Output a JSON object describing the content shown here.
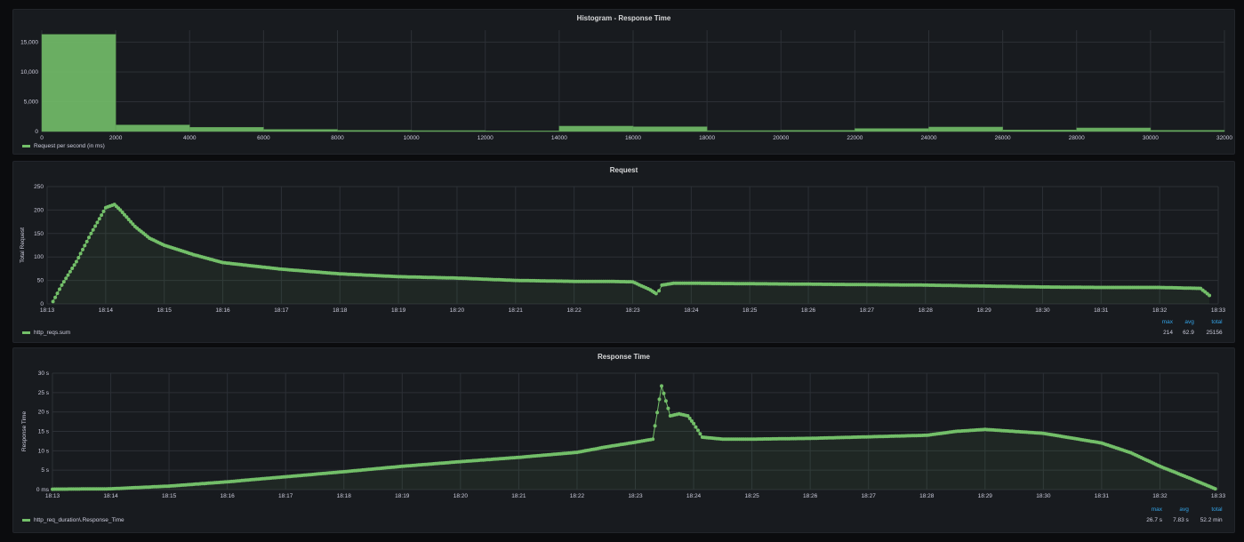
{
  "chart_data": [
    {
      "type": "bar",
      "title": "Histogram - Response Time",
      "xlabel": "",
      "ylabel": "",
      "xlim": [
        0,
        32000
      ],
      "ylim": [
        0,
        17000
      ],
      "x_ticks": [
        "0",
        "2000",
        "4000",
        "6000",
        "8000",
        "10000",
        "12000",
        "14000",
        "16000",
        "18000",
        "20000",
        "22000",
        "24000",
        "26000",
        "28000",
        "30000",
        "32000"
      ],
      "y_ticks": [
        "0",
        "5,000",
        "10,000",
        "15,000"
      ],
      "y_tick_values": [
        0,
        5000,
        10000,
        15000
      ],
      "bin_edges": [
        0,
        2000,
        4000,
        6000,
        8000,
        10000,
        12000,
        14000,
        16000,
        18000,
        20000,
        22000,
        24000,
        26000,
        28000,
        30000,
        32000
      ],
      "values": [
        16300,
        1100,
        700,
        350,
        200,
        150,
        100,
        900,
        800,
        150,
        200,
        500,
        750,
        250,
        600,
        200
      ],
      "color": "#73bf69",
      "legend": [
        "Request per second (in ms)"
      ],
      "legend_position": "bottom-left",
      "grid": true
    },
    {
      "type": "line",
      "title": "Request",
      "xlabel": "",
      "ylabel": "Total Request",
      "ylim": [
        0,
        250
      ],
      "x_ticks": [
        "18:13",
        "18:14",
        "18:15",
        "18:16",
        "18:17",
        "18:18",
        "18:19",
        "18:20",
        "18:21",
        "18:22",
        "18:23",
        "18:24",
        "18:25",
        "18:26",
        "18:27",
        "18:28",
        "18:29",
        "18:30",
        "18:31",
        "18:32",
        "18:33"
      ],
      "y_ticks": [
        "0",
        "50",
        "100",
        "150",
        "200",
        "250"
      ],
      "y_tick_values": [
        0,
        50,
        100,
        150,
        200,
        250
      ],
      "x": [
        0.1,
        0.25,
        0.5,
        0.75,
        1.0,
        1.15,
        1.25,
        1.5,
        1.75,
        2.0,
        2.5,
        3.0,
        4.0,
        5.0,
        6.0,
        7.0,
        8.0,
        9.0,
        9.5,
        10.0,
        10.3,
        10.4,
        10.45,
        10.5,
        10.7,
        11.0,
        12.0,
        13.0,
        14.0,
        15.0,
        16.0,
        17.0,
        18.0,
        19.0,
        19.7,
        19.85
      ],
      "series": [
        {
          "name": "http_reqs.sum",
          "values": [
            5,
            40,
            90,
            150,
            205,
            212,
            200,
            165,
            140,
            125,
            105,
            88,
            74,
            64,
            58,
            55,
            50,
            48,
            48,
            47,
            30,
            22,
            28,
            40,
            44,
            44,
            43,
            42,
            41,
            40,
            38,
            36,
            35,
            35,
            33,
            18
          ]
        }
      ],
      "color": "#73bf69",
      "legend": [
        "http_reqs.sum"
      ],
      "legend_position": "bottom-left",
      "stats": {
        "headers": [
          "max",
          "avg",
          "total"
        ],
        "values": [
          "214",
          "62.9",
          "25156"
        ]
      },
      "grid": true
    },
    {
      "type": "line",
      "title": "Response Time",
      "xlabel": "",
      "ylabel": "Response Time",
      "ylim": [
        0,
        30
      ],
      "x_ticks": [
        "18:13",
        "18:14",
        "18:15",
        "18:16",
        "18:17",
        "18:18",
        "18:19",
        "18:20",
        "18:21",
        "18:22",
        "18:23",
        "18:24",
        "18:25",
        "18:26",
        "18:27",
        "18:28",
        "18:29",
        "18:30",
        "18:31",
        "18:32",
        "18:33"
      ],
      "y_ticks": [
        "0 ms",
        "5 s",
        "10 s",
        "15 s",
        "20 s",
        "25 s",
        "30 s"
      ],
      "y_tick_values": [
        0,
        5,
        10,
        15,
        20,
        25,
        30
      ],
      "x": [
        0.0,
        1.0,
        2.0,
        3.0,
        4.0,
        5.0,
        6.0,
        7.0,
        8.0,
        9.0,
        9.5,
        10.0,
        10.3,
        10.45,
        10.6,
        10.75,
        10.9,
        11.0,
        11.15,
        11.5,
        12.0,
        13.0,
        14.0,
        15.0,
        15.5,
        16.0,
        17.0,
        18.0,
        18.5,
        19.0,
        19.5,
        19.95
      ],
      "series": [
        {
          "name": "http_req_duration\\.Response_Time",
          "values": [
            0.1,
            0.2,
            0.9,
            2.0,
            3.3,
            4.6,
            6.0,
            7.2,
            8.3,
            9.6,
            11.0,
            12.2,
            13.0,
            26.7,
            19.0,
            19.5,
            19.0,
            17.0,
            13.5,
            13.0,
            13.0,
            13.2,
            13.6,
            14.0,
            15.0,
            15.5,
            14.5,
            12.0,
            9.5,
            6.0,
            3.0,
            0.2
          ]
        }
      ],
      "color": "#73bf69",
      "legend": [
        "http_req_duration\\.Response_Time"
      ],
      "legend_position": "bottom-left",
      "stats": {
        "headers": [
          "max",
          "avg",
          "total"
        ],
        "values": [
          "26.7 s",
          "7.83 s",
          "52.2 min"
        ]
      },
      "grid": true
    }
  ]
}
